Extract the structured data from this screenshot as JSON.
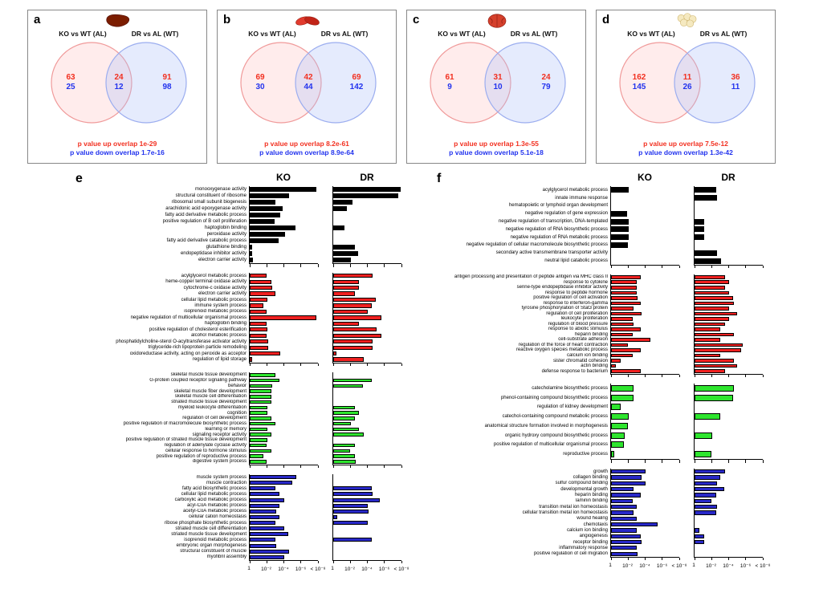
{
  "colors": {
    "up_text": "#f23020",
    "down_text": "#2233ee",
    "venn_left_stroke": "#f09a9a",
    "venn_right_stroke": "#9badef"
  },
  "venn_panels": [
    {
      "letter": "a",
      "organ_icon": "liver-icon",
      "left_set_label": "KO vs WT (AL)",
      "right_set_label": "DR vs AL (WT)",
      "counts": {
        "left_up": "63",
        "left_down": "25",
        "overlap_up": "24",
        "overlap_down": "12",
        "right_up": "91",
        "right_down": "98"
      },
      "p_value_up": "p value up overlap 1e-29",
      "p_value_down": "p value down overlap 1.7e-16"
    },
    {
      "letter": "b",
      "organ_icon": "muscle-icon",
      "left_set_label": "KO vs WT (AL)",
      "right_set_label": "DR vs AL (WT)",
      "counts": {
        "left_up": "69",
        "left_down": "30",
        "overlap_up": "42",
        "overlap_down": "44",
        "right_up": "69",
        "right_down": "142"
      },
      "p_value_up": "p value up overlap 8.2e-61",
      "p_value_down": "p value down overlap 8.9e-64"
    },
    {
      "letter": "c",
      "organ_icon": "brain-icon",
      "left_set_label": "KO vs WT (AL)",
      "right_set_label": "DR vs AL (WT)",
      "counts": {
        "left_up": "61",
        "left_down": "9",
        "overlap_up": "31",
        "overlap_down": "10",
        "right_up": "24",
        "right_down": "79"
      },
      "p_value_up": "p value up overlap 1.3e-55",
      "p_value_down": "p value down overlap 5.1e-18"
    },
    {
      "letter": "d",
      "organ_icon": "adipose-icon",
      "left_set_label": "KO vs WT (AL)",
      "right_set_label": "DR vs AL (WT)",
      "counts": {
        "left_up": "162",
        "left_down": "145",
        "overlap_up": "11",
        "overlap_down": "26",
        "right_up": "36",
        "right_down": "11"
      },
      "p_value_up": "p value up overlap 7.5e-12",
      "p_value_down": "p value down overlap 1.3e-42"
    }
  ],
  "chart_data": [
    {
      "panel": "e",
      "type": "bar",
      "orientation": "horizontal",
      "column_headers": [
        "KO",
        "DR"
      ],
      "x_tick_labels": [
        "1",
        "10⁻²",
        "10⁻⁴",
        "10⁻⁶",
        "< 10⁻⁸"
      ],
      "x_axis_note": "enrichment p-value, log scale; bar length = -log10(p)",
      "xlim": [
        0,
        8
      ],
      "groups": [
        {
          "name": "black",
          "color": "#000000",
          "categories": [
            "monooxygenase activity",
            "structural constituent of ribosome",
            "ribosomal small subunit biogenesis",
            "arachidonic acid epoxygenase activity",
            "fatty acid derivative metabolic process",
            "positive regulation of B cell proliferation",
            "haptoglobin binding",
            "peroxidase activity",
            "fatty acid derivative catabolic process",
            "glutathione binding",
            "endopeptidase inhibitor activity",
            "electron carrier activity"
          ],
          "series": [
            {
              "name": "KO",
              "values": [
                7.8,
                4.6,
                3.0,
                3.9,
                3.6,
                2.9,
                5.4,
                4.1,
                3.4,
                0.3,
                0.3,
                0.4
              ]
            },
            {
              "name": "DR",
              "values": [
                7.9,
                7.6,
                2.3,
                1.6,
                0,
                0,
                1.3,
                0,
                0,
                2.5,
                2.9,
                2.1
              ]
            }
          ]
        },
        {
          "name": "red",
          "color": "#ee2020",
          "categories": [
            "acylglycerol metabolic process",
            "heme-copper terminal oxidase activity",
            "cytochrome-c oxidase activity",
            "electron carrier activity",
            "cellular lipid metabolic process",
            "immune system process",
            "isoprenoid metabolic process",
            "negative regulation of multicellular organismal process",
            "haptoglobin binding",
            "positive regulation of cholesterol esterification",
            "alcohol metabolic process",
            "phosphatidylcholine-sterol O-acyltransferase activator activity",
            "triglyceride-rich lipoprotein particle remodeling",
            "oxidoreductase activity, acting on peroxide as acceptor",
            "regulation of lipid storage"
          ],
          "series": [
            {
              "name": "KO",
              "values": [
                2.0,
                2.5,
                2.6,
                3.0,
                2.1,
                1.6,
                2.0,
                7.8,
                2.0,
                2.1,
                2.0,
                2.2,
                2.2,
                3.6,
                0.3
              ]
            },
            {
              "name": "DR",
              "values": [
                4.6,
                3.0,
                3.0,
                2.5,
                5.0,
                4.5,
                4.0,
                5.6,
                3.0,
                5.1,
                5.6,
                4.6,
                4.6,
                0.4,
                3.6
              ]
            }
          ]
        },
        {
          "name": "green",
          "color": "#2ee52e",
          "categories": [
            "skeletal muscle tissue development",
            "G-protein coupled receptor signaling pathway",
            "behavior",
            "skeletal muscle fiber development",
            "skeletal muscle cell differentiation",
            "striated muscle tissue development",
            "myeloid leukocyte differentiation",
            "cognition",
            "regulation of cell development",
            "positive regulation of macromolecule biosynthetic process",
            "learning or memory",
            "signaling receptor activity",
            "positive regulation of striated muscle tissue development",
            "regulation of adenylate cyclase activity",
            "cellular response to hormone stimulus",
            "positive regulation of reproductive process",
            "digestive system process"
          ],
          "series": [
            {
              "name": "KO",
              "values": [
                3.0,
                3.5,
                2.6,
                2.5,
                2.5,
                2.5,
                2.1,
                2.1,
                2.5,
                3.0,
                2.1,
                2.5,
                2.1,
                2.0,
                2.5,
                1.6,
                2.0
              ]
            },
            {
              "name": "DR",
              "values": [
                0,
                4.5,
                3.5,
                0,
                0,
                0,
                2.5,
                3.0,
                2.5,
                2.1,
                3.0,
                3.6,
                0,
                2.5,
                2.0,
                2.5,
                2.6
              ]
            }
          ]
        },
        {
          "name": "blue",
          "color": "#2828c8",
          "categories": [
            "muscle system process",
            "muscle contraction",
            "fatty acid biosynthetic process",
            "cellular lipid metabolic process",
            "carboxylic acid metabolic process",
            "acyl-CoA metabolic process",
            "acetyl-CoA metabolic process",
            "cellular cation homeostasis",
            "ribose phosphate biosynthetic process",
            "striated muscle cell differentiation",
            "striated muscle tissue development",
            "isoprenoid metabolic process",
            "embryonic organ morphogenesis",
            "structural constituent of muscle",
            "myofibril assembly"
          ],
          "series": [
            {
              "name": "KO",
              "values": [
                5.5,
                5.0,
                3.0,
                3.5,
                4.0,
                3.5,
                3.1,
                3.5,
                3.0,
                4.0,
                4.5,
                3.0,
                3.1,
                4.6,
                4.0
              ]
            },
            {
              "name": "DR",
              "values": [
                0,
                0,
                4.5,
                4.6,
                5.5,
                4.0,
                4.1,
                0.5,
                4.0,
                0,
                0,
                4.5,
                0,
                0,
                0
              ]
            }
          ]
        }
      ]
    },
    {
      "panel": "f",
      "type": "bar",
      "orientation": "horizontal",
      "column_headers": [
        "KO",
        "DR"
      ],
      "x_tick_labels": [
        "1",
        "10⁻²",
        "10⁻⁴",
        "10⁻⁶",
        "< 10⁻⁸"
      ],
      "x_axis_note": "enrichment p-value, log scale; bar length = -log10(p)",
      "xlim": [
        0,
        8
      ],
      "groups": [
        {
          "name": "black",
          "color": "#000000",
          "categories": [
            "acylglycerol metabolic process",
            "innate immune response",
            "hematopoietic or lymphoid organ development",
            "negative regulation of gene expression",
            "negative regulation of transcription, DNA-templated",
            "negative regulation of RNA biosynthetic process",
            "negative regulation of RNA metabolic process",
            "negative regulation of cellular macromolecule biosynthetic process",
            "secondary active transmembrane transporter activity",
            "neutral lipid catabolic process"
          ],
          "series": [
            {
              "name": "KO",
              "values": [
                2.1,
                0,
                0,
                1.9,
                2.1,
                2.1,
                2.1,
                2.0,
                0,
                0
              ]
            },
            {
              "name": "DR",
              "values": [
                2.5,
                2.6,
                0,
                0,
                1.1,
                1.1,
                1.1,
                0,
                2.6,
                3.1
              ]
            }
          ]
        },
        {
          "name": "red",
          "color": "#ee2020",
          "categories": [
            "antigen processing and presentation of peptide antigen via MHC class II",
            "response to cytokine",
            "serine-type endopeptidase inhibitor activity",
            "response to peptide hormone",
            "positive regulation of cell activation",
            "response to interferon-gamma",
            "tyrosine phosphorylation of Stat3 protein",
            "regulation of cell proliferation",
            "leukocyte proliferation",
            "regulation of blood pressure",
            "response to abiotic stimulus",
            "heparin binding",
            "cell-substrate adhesion",
            "regulation of the force of heart contraction",
            "reactive oxygen species metabolic process",
            "calcium ion binding",
            "sister chromatid cohesion",
            "actin binding",
            "defense response to bacterium"
          ],
          "series": [
            {
              "name": "KO",
              "values": [
                3.5,
                3.0,
                3.0,
                3.0,
                3.1,
                3.5,
                2.6,
                3.6,
                2.5,
                2.6,
                3.5,
                2.5,
                4.6,
                2.0,
                3.5,
                2.5,
                1.1,
                0.6,
                3.5
              ]
            },
            {
              "name": "DR",
              "values": [
                3.6,
                4.0,
                3.6,
                4.0,
                4.5,
                4.6,
                4.0,
                5.0,
                4.0,
                3.6,
                3.0,
                4.6,
                3.0,
                5.6,
                5.5,
                3.0,
                4.6,
                5.0,
                3.6
              ]
            }
          ]
        },
        {
          "name": "green",
          "color": "#2ee52e",
          "categories": [
            "catecholamine biosynthetic process",
            "phenol-containing compound biosynthetic process",
            "regulation of kidney development",
            "catechol-containing compound metabolic process",
            "anatomical structure formation involved in morphogenesis",
            "organic hydroxy compound biosynthetic process",
            "positive regulation of multicellular organismal process",
            "reproductive process"
          ],
          "series": [
            {
              "name": "KO",
              "values": [
                2.6,
                2.6,
                1.1,
                2.1,
                2.0,
                1.6,
                1.5,
                0.4
              ]
            },
            {
              "name": "DR",
              "values": [
                4.6,
                4.5,
                0,
                3.0,
                0,
                2.1,
                0,
                2.0
              ]
            }
          ]
        },
        {
          "name": "blue",
          "color": "#2828c8",
          "categories": [
            "growth",
            "collagen binding",
            "sulfur compound binding",
            "developmental growth",
            "heparin binding",
            "laminin binding",
            "transition metal ion homeostasis",
            "cellular transition metal ion homeostasis",
            "wound healing",
            "chemotaxis",
            "calcium ion binding",
            "angiogenesis",
            "receptor binding",
            "inflammatory response",
            "positive regulation of cell migration"
          ],
          "series": [
            {
              "name": "KO",
              "values": [
                4.0,
                3.6,
                4.0,
                2.6,
                3.5,
                2.5,
                3.0,
                2.6,
                3.0,
                5.5,
                3.0,
                3.5,
                3.6,
                3.0,
                3.1
              ]
            },
            {
              "name": "DR",
              "values": [
                3.6,
                3.0,
                2.6,
                3.5,
                2.5,
                2.0,
                2.6,
                2.5,
                0,
                0,
                0.6,
                1.1,
                1.1,
                0,
                0
              ]
            }
          ]
        }
      ]
    }
  ]
}
